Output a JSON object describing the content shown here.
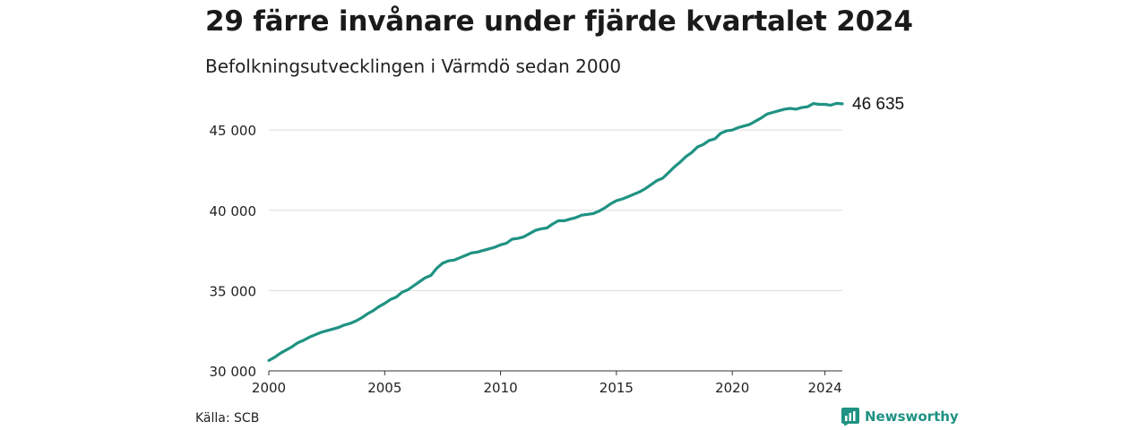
{
  "header": {
    "title": "29 färre invånare under fjärde kvartalet 2024",
    "subtitle": "Befolkningsutvecklingen i Värmdö sedan 2000"
  },
  "footer": {
    "source": "Källa: SCB",
    "brand": "Newsworthy"
  },
  "colors": {
    "line": "#1f9283",
    "grid": "#dddddd",
    "brand": "#1f9283"
  },
  "chart_data": {
    "type": "line",
    "title": "29 färre invånare under fjärde kvartalet 2024",
    "subtitle": "Befolkningsutvecklingen i Värmdö sedan 2000",
    "xlabel": "",
    "ylabel": "",
    "xlim": [
      2000,
      2024.75
    ],
    "ylim": [
      30000,
      47800
    ],
    "grid": "horizontal",
    "x_ticks": [
      {
        "value": 2000,
        "label": "2000"
      },
      {
        "value": 2005,
        "label": "2005"
      },
      {
        "value": 2010,
        "label": "2010"
      },
      {
        "value": 2015,
        "label": "2015"
      },
      {
        "value": 2020,
        "label": "2020"
      },
      {
        "value": 2024,
        "label": "2024"
      }
    ],
    "y_ticks": [
      {
        "value": 30000,
        "label": "30 000"
      },
      {
        "value": 35000,
        "label": "35 000"
      },
      {
        "value": 40000,
        "label": "40 000"
      },
      {
        "value": 45000,
        "label": "45 000"
      }
    ],
    "end_label": "46 635",
    "series": [
      {
        "x": [
          2000.0,
          2000.25,
          2000.5,
          2000.75,
          2001.0,
          2001.25,
          2001.5,
          2001.75,
          2002.0,
          2002.25,
          2002.5,
          2002.75,
          2003.0,
          2003.25,
          2003.5,
          2003.75,
          2004.0,
          2004.25,
          2004.5,
          2004.75,
          2005.0,
          2005.25,
          2005.5,
          2005.75,
          2006.0,
          2006.25,
          2006.5,
          2006.75,
          2007.0,
          2007.25,
          2007.5,
          2007.75,
          2008.0,
          2008.25,
          2008.5,
          2008.75,
          2009.0,
          2009.25,
          2009.5,
          2009.75,
          2010.0,
          2010.25,
          2010.5,
          2010.75,
          2011.0,
          2011.25,
          2011.5,
          2011.75,
          2012.0,
          2012.25,
          2012.5,
          2012.75,
          2013.0,
          2013.25,
          2013.5,
          2013.75,
          2014.0,
          2014.25,
          2014.5,
          2014.75,
          2015.0,
          2015.25,
          2015.5,
          2015.75,
          2016.0,
          2016.25,
          2016.5,
          2016.75,
          2017.0,
          2017.25,
          2017.5,
          2017.75,
          2018.0,
          2018.25,
          2018.5,
          2018.75,
          2019.0,
          2019.25,
          2019.5,
          2019.75,
          2020.0,
          2020.25,
          2020.5,
          2020.75,
          2021.0,
          2021.25,
          2021.5,
          2021.75,
          2022.0,
          2022.25,
          2022.5,
          2022.75,
          2023.0,
          2023.25,
          2023.5,
          2023.75,
          2024.0,
          2024.25,
          2024.5,
          2024.75
        ],
        "y": [
          30650,
          30850,
          31100,
          31300,
          31500,
          31750,
          31900,
          32100,
          32250,
          32400,
          32500,
          32600,
          32700,
          32850,
          32950,
          33100,
          33300,
          33550,
          33750,
          34000,
          34200,
          34450,
          34600,
          34900,
          35050,
          35300,
          35550,
          35800,
          35950,
          36400,
          36700,
          36850,
          36900,
          37050,
          37200,
          37350,
          37400,
          37500,
          37600,
          37700,
          37850,
          37950,
          38200,
          38250,
          38350,
          38550,
          38750,
          38850,
          38900,
          39150,
          39350,
          39350,
          39450,
          39550,
          39700,
          39750,
          39800,
          39950,
          40150,
          40400,
          40600,
          40700,
          40850,
          41000,
          41150,
          41350,
          41600,
          41850,
          42000,
          42350,
          42700,
          43000,
          43350,
          43600,
          43950,
          44100,
          44350,
          44450,
          44800,
          44950,
          45000,
          45150,
          45250,
          45350,
          45550,
          45750,
          46000,
          46100,
          46200,
          46300,
          46350,
          46300,
          46400,
          46450,
          46650,
          46600,
          46600,
          46550,
          46664,
          46635
        ]
      }
    ]
  }
}
